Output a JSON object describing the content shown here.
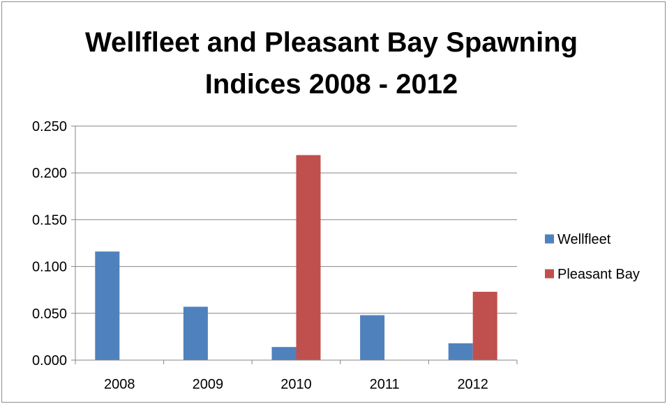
{
  "chart_data": {
    "type": "bar",
    "title_lines": [
      "Wellfleet and Pleasant Bay Spawning",
      "Indices 2008 - 2012"
    ],
    "xlabel": "",
    "ylabel": "",
    "categories": [
      "2008",
      "2009",
      "2010",
      "2011",
      "2012"
    ],
    "series": [
      {
        "name": "Wellfleet",
        "color": "#4f81bd",
        "values": [
          0.116,
          0.057,
          0.014,
          0.048,
          0.018
        ]
      },
      {
        "name": "Pleasant Bay",
        "color": "#c0504d",
        "values": [
          0.0,
          0.0,
          0.219,
          0.0,
          0.073
        ]
      }
    ],
    "ylim": [
      0,
      0.25
    ],
    "yticks": [
      "0.000",
      "0.050",
      "0.100",
      "0.150",
      "0.200",
      "0.250"
    ],
    "grid": true,
    "legend_position": "right",
    "colors": {
      "gridline": "#868686",
      "axis": "#868686",
      "frame": "#8c8c8c"
    }
  }
}
